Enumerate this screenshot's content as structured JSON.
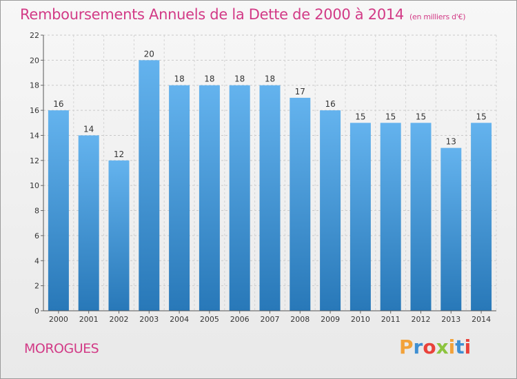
{
  "header": {
    "title": "Remboursements Annuels de la Dette de 2000 à 2014",
    "unit": "(en milliers d'€)"
  },
  "footer": {
    "city": "MOROGUES",
    "logo": {
      "letters": [
        "P",
        "r",
        "o",
        "x",
        "i",
        "t",
        "i"
      ],
      "colors": [
        "#f2a23a",
        "#3f8fd2",
        "#e9423b",
        "#8cc43f",
        "#f2a23a",
        "#3f8fd2",
        "#e9423b"
      ]
    }
  },
  "colors": {
    "bar_top": "#64b3ee",
    "bar_bottom": "#2878b8",
    "title": "#d23a86"
  },
  "chart_data": {
    "type": "bar",
    "title": "Remboursements Annuels de la Dette de 2000 à 2014",
    "categories": [
      "2000",
      "2001",
      "2002",
      "2003",
      "2004",
      "2005",
      "2006",
      "2007",
      "2008",
      "2009",
      "2010",
      "2011",
      "2012",
      "2013",
      "2014"
    ],
    "values": [
      16,
      14,
      12,
      20,
      18,
      18,
      18,
      18,
      17,
      16,
      15,
      15,
      15,
      13,
      15
    ],
    "value_labels": [
      "16",
      "14",
      "12",
      "20",
      "18",
      "18",
      "18",
      "18",
      "17",
      "16",
      "15",
      "15",
      "15",
      "13",
      "15"
    ],
    "yticks": [
      "0",
      "2",
      "4",
      "6",
      "8",
      "10",
      "12",
      "14",
      "16",
      "18",
      "20",
      "22"
    ],
    "ylim": [
      0,
      22
    ],
    "grid": true,
    "xlabel": "",
    "ylabel": ""
  }
}
